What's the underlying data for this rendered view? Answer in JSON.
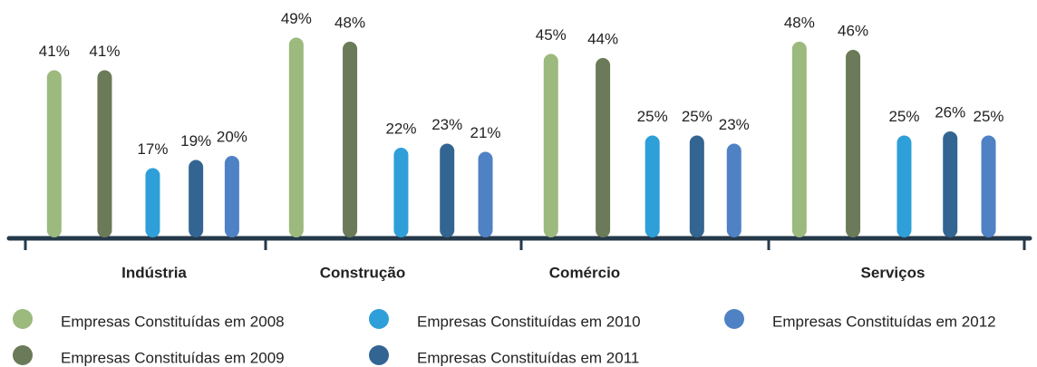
{
  "chart_data": {
    "type": "bar",
    "categories": [
      "Indústria",
      "Construção",
      "Comércio",
      "Serviços"
    ],
    "series": [
      {
        "name": "Empresas Constituídas em 2008",
        "color": "#9cb97e",
        "values": [
          41,
          49,
          45,
          48
        ],
        "value_labels": [
          "41%",
          "49%",
          "45%",
          "48%"
        ]
      },
      {
        "name": "Empresas Constituídas em 2009",
        "color": "#6b7a58",
        "values": [
          41,
          48,
          44,
          46
        ],
        "value_labels": [
          "41%",
          "48%",
          "44%",
          "46%"
        ]
      },
      {
        "name": "Empresas Constituídas em 2010",
        "color": "#2e9fd8",
        "values": [
          17,
          22,
          25,
          25
        ],
        "value_labels": [
          "17%",
          "22%",
          "25%",
          "25%"
        ]
      },
      {
        "name": "Empresas Constituídas em 2011",
        "color": "#336592",
        "values": [
          19,
          23,
          25,
          26
        ],
        "value_labels": [
          "19%",
          "23%",
          "25%",
          "26%"
        ]
      },
      {
        "name": "Empresas Constituídas em 2012",
        "color": "#4f82c4",
        "values": [
          20,
          21,
          23,
          25
        ],
        "value_labels": [
          "20%",
          "21%",
          "23%",
          "25%"
        ]
      }
    ]
  }
}
